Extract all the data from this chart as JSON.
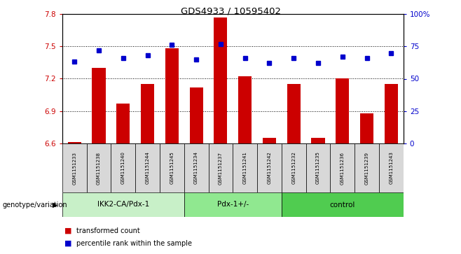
{
  "title": "GDS4933 / 10595402",
  "samples": [
    "GSM1151233",
    "GSM1151238",
    "GSM1151240",
    "GSM1151244",
    "GSM1151245",
    "GSM1151234",
    "GSM1151237",
    "GSM1151241",
    "GSM1151242",
    "GSM1151232",
    "GSM1151235",
    "GSM1151236",
    "GSM1151239",
    "GSM1151243"
  ],
  "bar_values": [
    6.61,
    7.3,
    6.97,
    7.15,
    7.48,
    7.12,
    7.77,
    7.22,
    6.65,
    7.15,
    6.65,
    7.2,
    6.88,
    7.15
  ],
  "percentile_pct": [
    63,
    72,
    66,
    68,
    76,
    65,
    77,
    66,
    62,
    66,
    62,
    67,
    66,
    70
  ],
  "bar_bottom": 6.6,
  "ylim_left": [
    6.6,
    7.8
  ],
  "ylim_right": [
    0,
    100
  ],
  "yticks_left": [
    6.6,
    6.9,
    7.2,
    7.5,
    7.8
  ],
  "yticks_right": [
    0,
    25,
    50,
    75,
    100
  ],
  "ytick_labels_right": [
    "0",
    "25",
    "50",
    "75",
    "100%"
  ],
  "groups": [
    {
      "label": "IKK2-CA/Pdx-1",
      "start": 0,
      "end": 5,
      "color": "#c8f0c8"
    },
    {
      "label": "Pdx-1+/-",
      "start": 5,
      "end": 9,
      "color": "#90e890"
    },
    {
      "label": "control",
      "start": 9,
      "end": 14,
      "color": "#50cc50"
    }
  ],
  "bar_color": "#cc0000",
  "dot_color": "#0000cc",
  "xlabel_left": "genotype/variation",
  "legend_bar": "transformed count",
  "legend_dot": "percentile rank within the sample",
  "tick_color_left": "#cc0000",
  "tick_color_right": "#0000cc",
  "plot_bg": "#ffffff",
  "sample_box_color": "#d8d8d8",
  "grid_line_color": "#000000",
  "dot_markersize": 5
}
